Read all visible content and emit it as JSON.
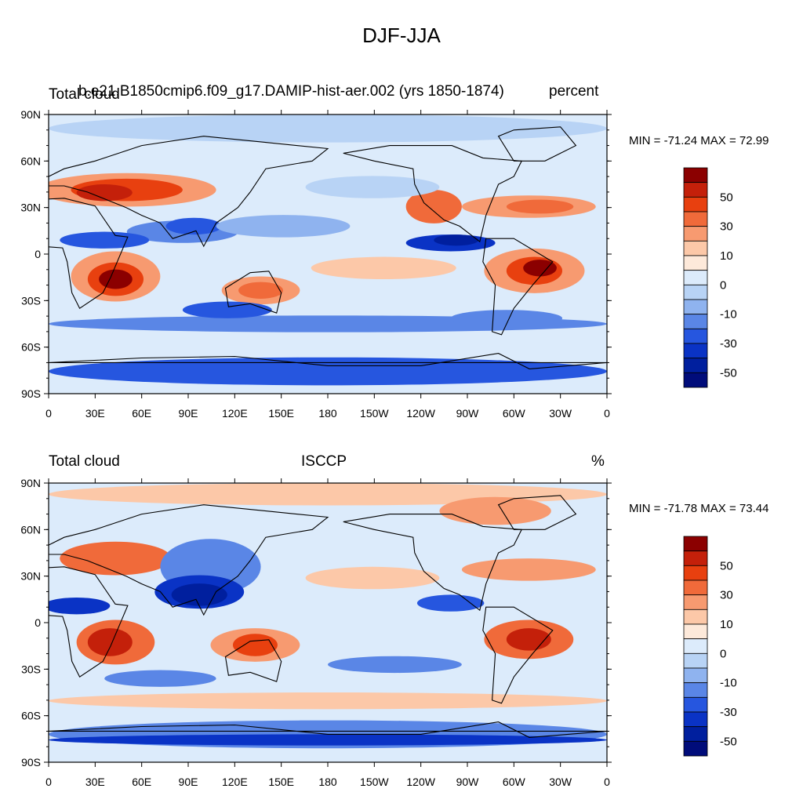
{
  "title": "DJF-JJA",
  "panels": [
    {
      "left_label": "Total cloud",
      "center_label": "b.e21.B1850cmip6.f09_g17.DAMIP-hist-aer.002 (yrs 1850-1874)",
      "right_label": "percent",
      "stats": "MIN = -71.24 MAX =  72.99"
    },
    {
      "left_label": "Total cloud",
      "center_label": "ISCCP",
      "right_label": "%",
      "stats": "MIN = -71.78 MAX =  73.44"
    }
  ],
  "lat_ticks": [
    "90N",
    "60N",
    "30N",
    "0",
    "30S",
    "60S",
    "90S"
  ],
  "lon_ticks": [
    "0",
    "30E",
    "60E",
    "90E",
    "120E",
    "150E",
    "180",
    "150W",
    "120W",
    "90W",
    "60W",
    "30W",
    "0"
  ],
  "colorbar": {
    "labels": [
      "50",
      "30",
      "10",
      "0",
      "-10",
      "-30",
      "-50"
    ],
    "colors": [
      "#8b0000",
      "#c4200a",
      "#e8400f",
      "#f06a3a",
      "#f79a70",
      "#fcc8a8",
      "#fde9da",
      "#dcebfb",
      "#b8d3f5",
      "#8fb3ef",
      "#5a86e6",
      "#2656df",
      "#0a33c5",
      "#001f9e",
      "#000c7a"
    ]
  },
  "map_colors": {
    "background": "#dcebfb",
    "coastline": "#000000"
  }
}
